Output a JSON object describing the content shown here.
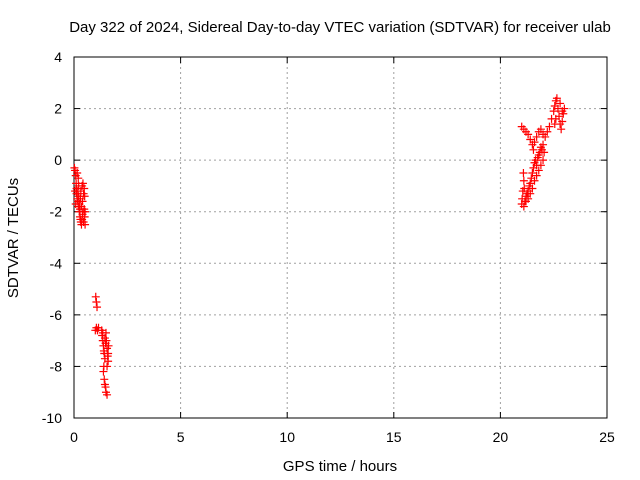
{
  "chart_data": {
    "type": "scatter",
    "title": "Day 322 of 2024, Sidereal Day-to-day VTEC variation (SDTVAR) for receiver ulab",
    "xlabel": "GPS time / hours",
    "ylabel": "SDTVAR / TECUs",
    "xlim": [
      0,
      25
    ],
    "ylim": [
      -10,
      4
    ],
    "xticks": [
      0,
      5,
      10,
      15,
      20,
      25
    ],
    "yticks": [
      -10,
      -8,
      -6,
      -4,
      -2,
      0,
      2,
      4
    ],
    "xtick_labels": [
      "0",
      "5",
      "10",
      "15",
      "20",
      "25"
    ],
    "ytick_labels": [
      "-10",
      "-8",
      "-6",
      "-4",
      "-2",
      "0",
      "2",
      "4"
    ],
    "grid": true,
    "marker": "plus",
    "color": "#ff0000",
    "series": [
      {
        "name": "SDTVAR",
        "points": [
          [
            0.02,
            -0.3
          ],
          [
            0.05,
            -0.4
          ],
          [
            0.08,
            -0.6
          ],
          [
            0.1,
            -0.9
          ],
          [
            0.12,
            -1.1
          ],
          [
            0.12,
            -1.3
          ],
          [
            0.15,
            -1.5
          ],
          [
            0.15,
            -0.5
          ],
          [
            0.18,
            -1.2
          ],
          [
            0.18,
            -1.6
          ],
          [
            0.2,
            -1.8
          ],
          [
            0.2,
            -0.7
          ],
          [
            0.22,
            -1.0
          ],
          [
            0.22,
            -1.4
          ],
          [
            0.25,
            -1.7
          ],
          [
            0.25,
            -2.0
          ],
          [
            0.28,
            -1.9
          ],
          [
            0.28,
            -2.2
          ],
          [
            0.3,
            -2.3
          ],
          [
            0.3,
            -1.5
          ],
          [
            0.32,
            -2.4
          ],
          [
            0.32,
            -1.2
          ],
          [
            0.35,
            -2.5
          ],
          [
            0.35,
            -1.8
          ],
          [
            0.38,
            -2.3
          ],
          [
            0.38,
            -1.0
          ],
          [
            0.4,
            -2.1
          ],
          [
            0.4,
            -1.6
          ],
          [
            0.42,
            -0.9
          ],
          [
            0.42,
            -2.0
          ],
          [
            0.45,
            -1.3
          ],
          [
            0.45,
            -2.4
          ],
          [
            0.48,
            -1.1
          ],
          [
            0.48,
            -1.9
          ],
          [
            0.5,
            -2.2
          ],
          [
            0.52,
            -2.5
          ],
          [
            0.5,
            -1.4
          ],
          [
            0.52,
            -2.0
          ],
          [
            0.08,
            -1.7
          ],
          [
            0.05,
            -1.2
          ],
          [
            1.02,
            -5.3
          ],
          [
            1.05,
            -5.5
          ],
          [
            1.08,
            -5.7
          ],
          [
            1.0,
            -6.6
          ],
          [
            1.05,
            -6.5
          ],
          [
            1.1,
            -6.6
          ],
          [
            1.15,
            -6.5
          ],
          [
            1.3,
            -6.6
          ],
          [
            1.32,
            -6.8
          ],
          [
            1.35,
            -7.0
          ],
          [
            1.38,
            -7.2
          ],
          [
            1.4,
            -7.4
          ],
          [
            1.42,
            -7.5
          ],
          [
            1.45,
            -7.7
          ],
          [
            1.4,
            -8.0
          ],
          [
            1.38,
            -8.2
          ],
          [
            1.42,
            -8.5
          ],
          [
            1.45,
            -8.7
          ],
          [
            1.48,
            -8.8
          ],
          [
            1.5,
            -9.0
          ],
          [
            1.55,
            -9.1
          ],
          [
            1.5,
            -6.7
          ],
          [
            1.52,
            -7.0
          ],
          [
            1.55,
            -7.3
          ],
          [
            1.58,
            -7.6
          ],
          [
            1.6,
            -7.8
          ],
          [
            1.55,
            -8.0
          ],
          [
            1.48,
            -7.1
          ],
          [
            1.45,
            -6.9
          ],
          [
            1.35,
            -6.7
          ],
          [
            1.6,
            -7.5
          ],
          [
            1.62,
            -7.2
          ],
          [
            21.0,
            -1.7
          ],
          [
            21.02,
            -1.5
          ],
          [
            21.05,
            -1.2
          ],
          [
            21.1,
            -0.8
          ],
          [
            21.08,
            -0.5
          ],
          [
            21.12,
            -1.1
          ],
          [
            21.15,
            -1.6
          ],
          [
            21.2,
            -1.4
          ],
          [
            21.25,
            -1.3
          ],
          [
            21.3,
            -1.2
          ],
          [
            21.35,
            -1.0
          ],
          [
            21.4,
            -0.9
          ],
          [
            21.45,
            -0.7
          ],
          [
            21.5,
            -0.5
          ],
          [
            21.55,
            -0.3
          ],
          [
            21.6,
            -0.1
          ],
          [
            21.65,
            0.0
          ],
          [
            21.7,
            -0.2
          ],
          [
            21.75,
            0.1
          ],
          [
            21.8,
            0.2
          ],
          [
            21.85,
            0.3
          ],
          [
            21.9,
            0.5
          ],
          [
            21.95,
            0.4
          ],
          [
            22.0,
            0.6
          ],
          [
            22.05,
            0.3
          ],
          [
            21.6,
            -0.8
          ],
          [
            21.7,
            -0.6
          ],
          [
            21.8,
            -0.4
          ],
          [
            21.9,
            -0.2
          ],
          [
            22.0,
            0.0
          ],
          [
            21.5,
            -1.1
          ],
          [
            21.4,
            -1.3
          ],
          [
            21.3,
            -1.5
          ],
          [
            21.2,
            -1.6
          ],
          [
            21.1,
            -1.8
          ],
          [
            21.0,
            1.3
          ],
          [
            21.1,
            1.2
          ],
          [
            21.2,
            1.1
          ],
          [
            21.3,
            1.0
          ],
          [
            21.4,
            0.8
          ],
          [
            21.5,
            0.6
          ],
          [
            21.55,
            0.4
          ],
          [
            21.6,
            0.7
          ],
          [
            21.7,
            0.9
          ],
          [
            21.8,
            1.1
          ],
          [
            21.9,
            1.2
          ],
          [
            22.0,
            1.0
          ],
          [
            22.1,
            0.9
          ],
          [
            22.2,
            1.1
          ],
          [
            22.3,
            1.3
          ],
          [
            22.4,
            1.6
          ],
          [
            22.5,
            1.9
          ],
          [
            22.55,
            2.1
          ],
          [
            22.6,
            2.3
          ],
          [
            22.65,
            2.4
          ],
          [
            22.7,
            2.0
          ],
          [
            22.75,
            1.7
          ],
          [
            22.8,
            1.4
          ],
          [
            22.85,
            1.2
          ],
          [
            22.9,
            1.5
          ],
          [
            22.95,
            1.8
          ],
          [
            23.0,
            2.0
          ],
          [
            22.9,
            1.9
          ],
          [
            22.8,
            2.2
          ],
          [
            22.6,
            1.6
          ],
          [
            22.55,
            1.4
          ]
        ]
      }
    ]
  }
}
